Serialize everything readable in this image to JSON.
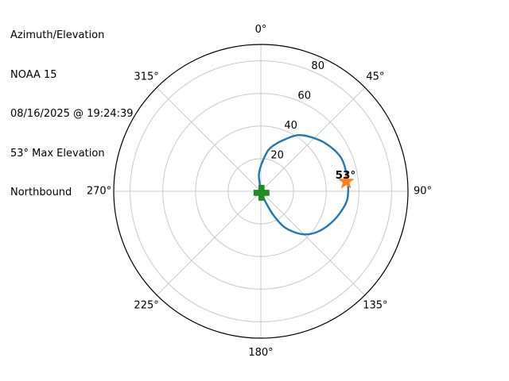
{
  "info_panel": {
    "title": "Azimuth/Elevation",
    "satellite": "NOAA 15",
    "timestamp": "08/16/2025 @ 19:24:39",
    "max_elevation_text": "53° Max Elevation",
    "direction": "Northbound"
  },
  "chart_data": {
    "type": "line",
    "projection": "polar",
    "title": "",
    "theta_zero_location": "top",
    "theta_direction": "clockwise",
    "grid": true,
    "angular_ticks": [
      {
        "deg": 0,
        "label": "0°"
      },
      {
        "deg": 45,
        "label": "45°"
      },
      {
        "deg": 90,
        "label": "90°"
      },
      {
        "deg": 135,
        "label": "135°"
      },
      {
        "deg": 180,
        "label": "180°"
      },
      {
        "deg": 225,
        "label": "225°"
      },
      {
        "deg": 270,
        "label": "270°"
      },
      {
        "deg": 315,
        "label": "315°"
      }
    ],
    "radial_axis": {
      "min": 0,
      "max": 90,
      "tick_label_angle_deg": 24.5
    },
    "radial_ticks": [
      {
        "value": 20,
        "label": "20"
      },
      {
        "value": 40,
        "label": "40"
      },
      {
        "value": 60,
        "label": "60"
      },
      {
        "value": 80,
        "label": "80"
      }
    ],
    "series": [
      {
        "name": "satellite-pass-track",
        "color": "#1f77b4",
        "line_width": 2.4,
        "points_az_el": [
          [
            158,
            1
          ],
          [
            156,
            8
          ],
          [
            152,
            17
          ],
          [
            147,
            26
          ],
          [
            140,
            33
          ],
          [
            134,
            38
          ],
          [
            126,
            42.5
          ],
          [
            116,
            46.5
          ],
          [
            106,
            50
          ],
          [
            96,
            53
          ],
          [
            86,
            53.5
          ],
          [
            76,
            53.5
          ],
          [
            66,
            53
          ],
          [
            54,
            49.5
          ],
          [
            43.5,
            45.5
          ],
          [
            33,
            41
          ],
          [
            22.5,
            33.5
          ],
          [
            16,
            29.5
          ],
          [
            10,
            25.5
          ],
          [
            4,
            19
          ],
          [
            -2,
            14
          ],
          [
            -7,
            10
          ],
          [
            -8.5,
            5
          ],
          [
            -9,
            1
          ]
        ]
      }
    ],
    "markers": [
      {
        "name": "pass-start",
        "shape": "plus",
        "color": "#228B22",
        "az": 158,
        "el": 1,
        "label": ""
      },
      {
        "name": "max-elevation",
        "shape": "star",
        "color": "#ff7f0e",
        "az": 83.5,
        "el": 52.5,
        "label": "53°"
      }
    ],
    "colors": {
      "grid": "#c9c9c9",
      "outline": "#000000",
      "tick_text": "#000000",
      "track": "#1f77b4",
      "start_marker": "#228B22",
      "max_marker": "#ff7f0e"
    }
  }
}
